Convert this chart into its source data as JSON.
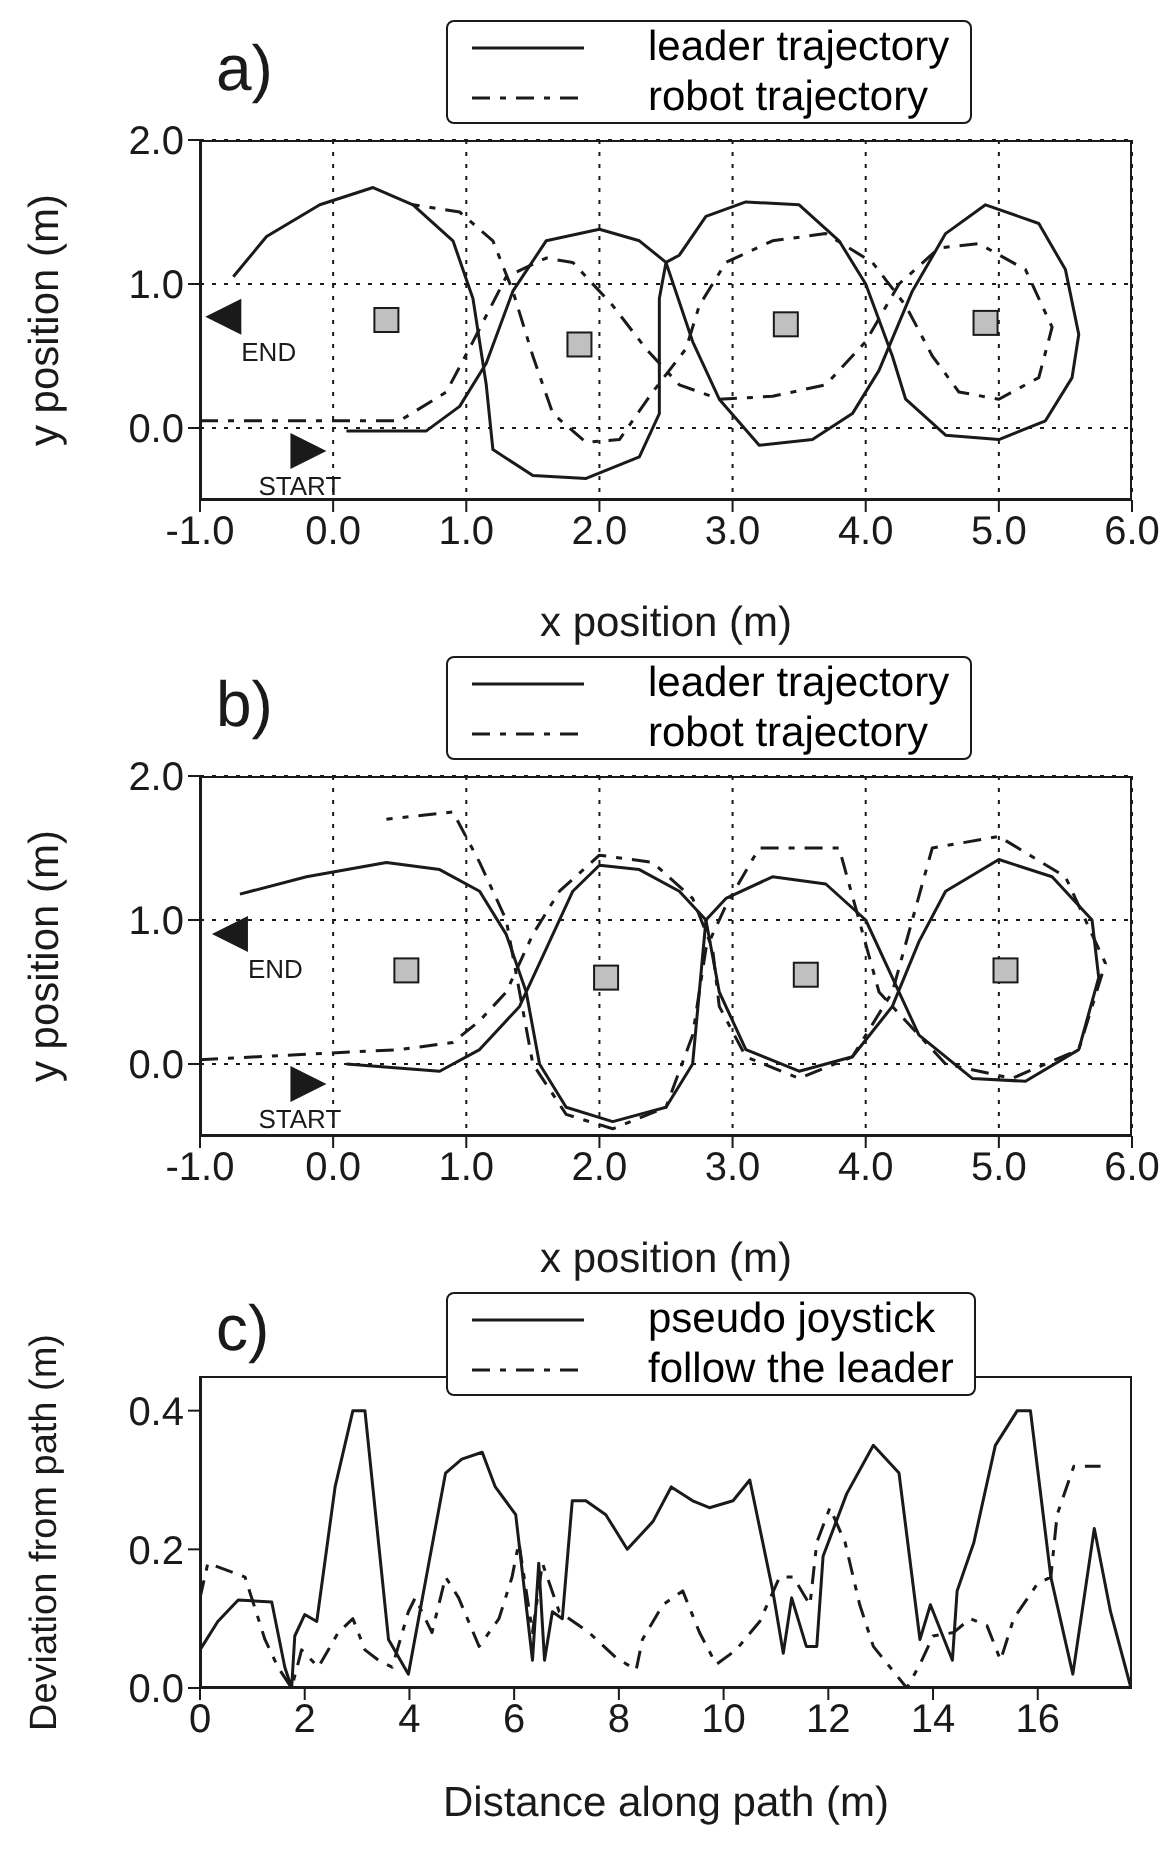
{
  "chart_data": [
    {
      "type": "line",
      "title": "a)",
      "xlabel": "x position (m)",
      "ylabel": "y position (m)",
      "xlim": [
        -1,
        6
      ],
      "ylim": [
        -0.5,
        2.0
      ],
      "xticks": [
        {
          "value": -1,
          "label": "-1.0"
        },
        {
          "value": 0,
          "label": "0.0"
        },
        {
          "value": 1,
          "label": "1.0"
        },
        {
          "value": 2,
          "label": "2.0"
        },
        {
          "value": 3,
          "label": "3.0"
        },
        {
          "value": 4,
          "label": "4.0"
        },
        {
          "value": 5,
          "label": "5.0"
        },
        {
          "value": 6,
          "label": "6.0"
        }
      ],
      "yticks": [
        {
          "value": 0,
          "label": "0.0"
        },
        {
          "value": 1,
          "label": "1.0"
        },
        {
          "value": 2,
          "label": "2.0"
        }
      ],
      "grid": true,
      "legend": "top",
      "annotations": [
        "START",
        "END"
      ],
      "series": [
        {
          "name": "leader trajectory",
          "line_style": "solid",
          "color": "#1a1a1a",
          "x": [
            0.1,
            0.7,
            0.95,
            1.15,
            1.35,
            1.6,
            2.0,
            2.3,
            2.5,
            2.7,
            2.9,
            3.2,
            3.6,
            3.9,
            4.1,
            4.35,
            4.6,
            4.9,
            5.3,
            5.5,
            5.6,
            5.55,
            5.35,
            5.0,
            4.6,
            4.3,
            4.2,
            4.0,
            3.8,
            3.5,
            3.1,
            2.8,
            2.6,
            2.5,
            2.45,
            2.45,
            2.3,
            1.9,
            1.5,
            1.2,
            1.15,
            1.05,
            0.9,
            0.6,
            0.3,
            -0.1,
            -0.5,
            -0.75
          ],
          "values": [
            -0.02,
            -0.02,
            0.15,
            0.45,
            0.95,
            1.3,
            1.38,
            1.3,
            1.15,
            0.6,
            0.2,
            -0.12,
            -0.08,
            0.1,
            0.4,
            0.95,
            1.35,
            1.55,
            1.42,
            1.1,
            0.65,
            0.35,
            0.05,
            -0.08,
            -0.05,
            0.2,
            0.5,
            1.0,
            1.3,
            1.55,
            1.57,
            1.47,
            1.2,
            1.15,
            0.9,
            0.1,
            -0.2,
            -0.35,
            -0.33,
            -0.15,
            0.3,
            0.9,
            1.3,
            1.55,
            1.67,
            1.55,
            1.33,
            1.05
          ]
        },
        {
          "name": "robot trajectory",
          "line_style": "dashed",
          "color": "#1a1a1a",
          "x": [
            -1.0,
            0.5,
            0.85,
            1.05,
            1.3,
            1.6,
            1.8,
            2.1,
            2.35,
            2.6,
            2.9,
            3.3,
            3.7,
            4.0,
            4.25,
            4.55,
            4.85,
            5.2,
            5.4,
            5.3,
            5.0,
            4.7,
            4.5,
            4.3,
            4.05,
            3.7,
            3.3,
            2.95,
            2.75,
            2.65,
            2.4,
            2.15,
            1.9,
            1.65,
            1.5,
            1.35,
            1.2,
            0.95,
            0.6
          ],
          "values": [
            0.05,
            0.05,
            0.25,
            0.6,
            1.05,
            1.18,
            1.15,
            0.85,
            0.55,
            0.3,
            0.2,
            0.22,
            0.3,
            0.6,
            1.0,
            1.25,
            1.28,
            1.1,
            0.7,
            0.35,
            0.2,
            0.25,
            0.5,
            0.85,
            1.15,
            1.35,
            1.3,
            1.15,
            0.85,
            0.55,
            0.25,
            -0.08,
            -0.1,
            0.1,
            0.5,
            0.95,
            1.3,
            1.5,
            1.55
          ]
        },
        {
          "type": "scatter",
          "marker": "square",
          "color": "#c0c0c0",
          "x": [
            0.4,
            1.85,
            3.4,
            4.9
          ],
          "values": [
            0.75,
            0.58,
            0.72,
            0.73
          ]
        }
      ]
    },
    {
      "type": "line",
      "title": "b)",
      "xlabel": "x position (m)",
      "ylabel": "y position (m)",
      "xlim": [
        -1,
        6
      ],
      "ylim": [
        -0.5,
        2.0
      ],
      "xticks": [
        {
          "value": -1,
          "label": "-1.0"
        },
        {
          "value": 0,
          "label": "0.0"
        },
        {
          "value": 1,
          "label": "1.0"
        },
        {
          "value": 2,
          "label": "2.0"
        },
        {
          "value": 3,
          "label": "3.0"
        },
        {
          "value": 4,
          "label": "4.0"
        },
        {
          "value": 5,
          "label": "5.0"
        },
        {
          "value": 6,
          "label": "6.0"
        }
      ],
      "yticks": [
        {
          "value": 0,
          "label": "0.0"
        },
        {
          "value": 1,
          "label": "1.0"
        },
        {
          "value": 2,
          "label": "2.0"
        }
      ],
      "grid": true,
      "legend": "top",
      "annotations": [
        "START",
        "END"
      ],
      "series": [
        {
          "name": "leader trajectory",
          "line_style": "solid",
          "color": "#1a1a1a",
          "x": [
            0.1,
            0.8,
            1.1,
            1.4,
            1.6,
            1.8,
            2.0,
            2.3,
            2.6,
            2.8,
            2.9,
            3.1,
            3.5,
            3.9,
            4.2,
            4.4,
            4.6,
            5.0,
            5.4,
            5.7,
            5.75,
            5.6,
            5.2,
            4.8,
            4.4,
            4.2,
            4.0,
            3.7,
            3.3,
            2.95,
            2.8,
            2.75,
            2.7,
            2.5,
            2.1,
            1.75,
            1.55,
            1.45,
            1.3,
            1.1,
            0.8,
            0.4,
            -0.2,
            -0.7
          ],
          "values": [
            0.0,
            -0.05,
            0.1,
            0.4,
            0.8,
            1.2,
            1.38,
            1.35,
            1.2,
            1.0,
            0.5,
            0.1,
            -0.05,
            0.05,
            0.4,
            0.85,
            1.2,
            1.42,
            1.3,
            1.0,
            0.6,
            0.1,
            -0.12,
            -0.1,
            0.2,
            0.6,
            1.0,
            1.25,
            1.3,
            1.15,
            1.0,
            0.5,
            0.0,
            -0.3,
            -0.4,
            -0.3,
            0.0,
            0.5,
            0.9,
            1.2,
            1.35,
            1.4,
            1.3,
            1.18
          ]
        },
        {
          "name": "robot trajectory",
          "line_style": "dashed",
          "color": "#1a1a1a",
          "x": [
            -1.0,
            0.5,
            0.9,
            1.1,
            1.3,
            1.5,
            1.7,
            2.0,
            2.4,
            2.7,
            2.85,
            2.9,
            3.1,
            3.5,
            3.9,
            4.2,
            4.5,
            5.0,
            5.5,
            5.8,
            5.6,
            5.1,
            4.6,
            4.1,
            3.8,
            3.2,
            2.95,
            2.8,
            2.7,
            2.5,
            2.1,
            1.75,
            1.5,
            1.4,
            1.3,
            1.1,
            0.9,
            0.4
          ],
          "values": [
            0.03,
            0.1,
            0.15,
            0.3,
            0.5,
            0.9,
            1.2,
            1.45,
            1.4,
            1.15,
            0.8,
            0.4,
            0.05,
            -0.1,
            0.05,
            0.5,
            1.5,
            1.58,
            1.3,
            0.7,
            0.1,
            -0.1,
            0.0,
            0.5,
            1.5,
            1.5,
            1.1,
            0.8,
            0.2,
            -0.3,
            -0.45,
            -0.35,
            0.0,
            0.5,
            1.0,
            1.4,
            1.75,
            1.7
          ]
        },
        {
          "type": "scatter",
          "marker": "square",
          "color": "#c0c0c0",
          "x": [
            0.55,
            2.05,
            3.55,
            5.05
          ],
          "values": [
            0.65,
            0.6,
            0.62,
            0.65
          ]
        }
      ]
    },
    {
      "type": "line",
      "title": "c)",
      "xlabel": "Distance along path (m)",
      "ylabel": "Deviation from path (m)",
      "xlim": [
        0,
        17.8
      ],
      "ylim": [
        0,
        0.45
      ],
      "xticks": [
        0,
        2,
        4,
        6,
        8,
        10,
        12,
        14,
        16
      ],
      "yticks": [
        {
          "value": 0,
          "label": "0.0"
        },
        {
          "value": 0.2,
          "label": "0.2"
        },
        {
          "value": 0.4,
          "label": "0.4"
        }
      ],
      "legend": "top",
      "series": [
        {
          "name": "pseudo joystick",
          "line_style": "solid",
          "color": "#1a1a1a",
          "x": [
            0,
            0.34,
            0.73,
            1.37,
            1.62,
            1.75,
            1.81,
            2.0,
            2.23,
            2.58,
            2.92,
            3.15,
            3.6,
            3.98,
            4.37,
            4.69,
            5.0,
            5.39,
            5.64,
            6.03,
            6.35,
            6.47,
            6.58,
            6.73,
            6.92,
            7.11,
            7.37,
            7.75,
            8.16,
            8.65,
            9.0,
            9.41,
            9.73,
            10.18,
            10.5,
            10.94,
            11.14,
            11.3,
            11.58,
            11.78,
            11.9,
            12.35,
            12.86,
            13.35,
            13.75,
            13.95,
            14.37,
            14.46,
            14.78,
            15.19,
            15.61,
            15.86,
            16.25,
            16.67,
            17.08,
            17.39,
            17.78
          ],
          "values": [
            0.055,
            0.096,
            0.127,
            0.124,
            0.03,
            0,
            0.075,
            0.106,
            0.096,
            0.29,
            0.4,
            0.4,
            0.07,
            0.02,
            0.18,
            0.31,
            0.33,
            0.34,
            0.29,
            0.25,
            0.04,
            0.18,
            0.04,
            0.11,
            0.1,
            0.27,
            0.27,
            0.25,
            0.2,
            0.24,
            0.29,
            0.27,
            0.26,
            0.27,
            0.3,
            0.14,
            0.05,
            0.13,
            0.06,
            0.06,
            0.19,
            0.28,
            0.35,
            0.31,
            0.07,
            0.12,
            0.04,
            0.14,
            0.21,
            0.35,
            0.4,
            0.4,
            0.16,
            0.02,
            0.23,
            0.11,
            0
          ]
        },
        {
          "name": "follow the leader",
          "line_style": "dashed",
          "color": "#1a1a1a",
          "x": [
            0,
            0.15,
            0.86,
            1.24,
            1.49,
            1.75,
            1.94,
            2.26,
            2.64,
            2.92,
            3.15,
            3.41,
            3.67,
            3.98,
            4.11,
            4.43,
            4.69,
            4.94,
            5.33,
            5.71,
            5.96,
            6.09,
            6.35,
            6.54,
            6.86,
            7.43,
            7.94,
            8.33,
            8.45,
            8.84,
            9.22,
            9.54,
            9.86,
            10.24,
            10.69,
            11.07,
            11.33,
            11.65,
            11.78,
            12.03,
            12.32,
            12.6,
            12.86,
            13.18,
            13.5,
            13.75,
            14.0,
            14.39,
            14.71,
            15.03,
            15.29,
            15.54,
            15.99,
            16.25,
            16.37,
            16.69,
            17.2
          ],
          "values": [
            0.13,
            0.18,
            0.16,
            0.07,
            0.03,
            0,
            0.055,
            0.03,
            0.08,
            0.1,
            0.055,
            0.04,
            0.03,
            0.11,
            0.13,
            0.08,
            0.16,
            0.13,
            0.06,
            0.1,
            0.16,
            0.21,
            0.08,
            0.18,
            0.11,
            0.08,
            0.044,
            0.026,
            0.07,
            0.12,
            0.14,
            0.08,
            0.034,
            0.055,
            0.096,
            0.16,
            0.16,
            0.12,
            0.21,
            0.26,
            0.21,
            0.12,
            0.06,
            0.03,
            0,
            0.034,
            0.075,
            0.08,
            0.1,
            0.09,
            0.04,
            0.1,
            0.15,
            0.16,
            0.25,
            0.32,
            0.32
          ]
        }
      ]
    }
  ]
}
